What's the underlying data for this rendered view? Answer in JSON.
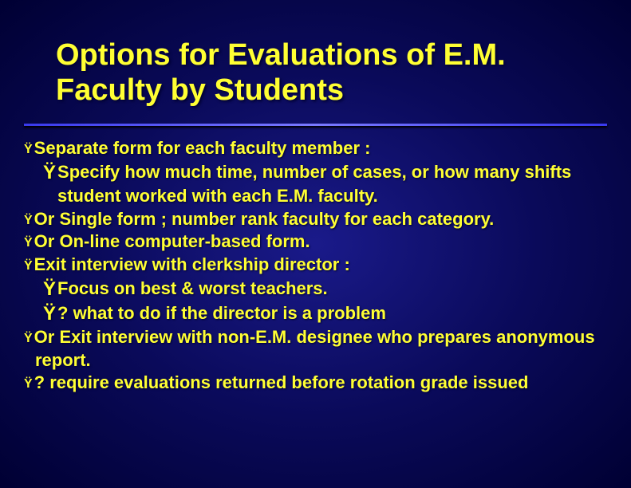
{
  "styling": {
    "slide_width": 791,
    "slide_height": 612,
    "title_color": "#ffff33",
    "body_color": "#ffff33",
    "title_fontsize": 38,
    "body_fontsize": 22,
    "sub_bullet_fontsize": 24,
    "top_bullet_fontsize": 16,
    "font_weight": "bold",
    "font_family": "Arial",
    "text_shadow": "1px 1px 2px #000033",
    "background": "radial-gradient(#1a1a8a, #0a0a5a, #000033)",
    "divider_gradient": "linear-gradient(to right, #3a3aee, #7a7aff, #3a3aee)",
    "bullet_glyph": "Ÿ"
  },
  "title": "Options for Evaluations of E.M. Faculty by Students",
  "bullets": {
    "b1": "Separate form for each faculty member :",
    "b1_1": "Specify how much time, number of cases, or how many shifts student worked with each E.M. faculty.",
    "b2": "Or Single form ; number rank faculty for each category.",
    "b3": "Or On-line computer-based form.",
    "b4": "Exit interview with clerkship director :",
    "b4_1": "Focus on best & worst teachers.",
    "b4_2": "? what to do if the director is a problem",
    "b5": "Or Exit interview with non-E.M. designee who prepares anonymous report.",
    "b6": "? require evaluations returned before rotation grade issued"
  }
}
